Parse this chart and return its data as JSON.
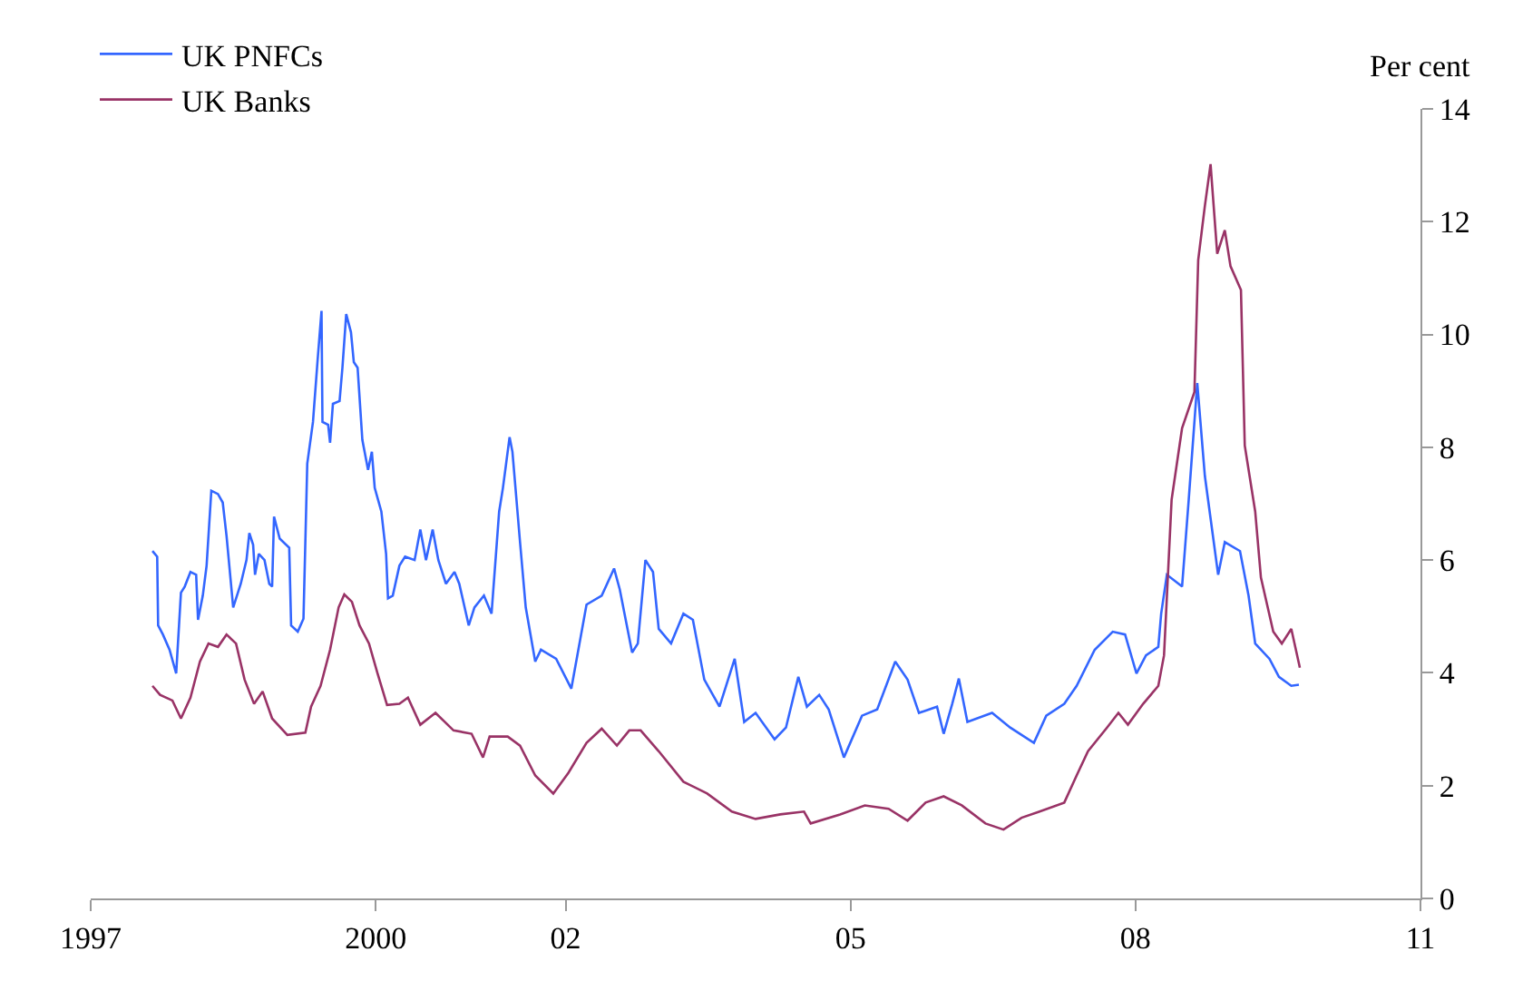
{
  "chart_data": {
    "type": "line",
    "ylabel": "Per cent",
    "xlim": [
      1997,
      2011
    ],
    "xticks": [
      {
        "value": 1997,
        "label": "1997"
      },
      {
        "value": 2000,
        "label": "2000"
      },
      {
        "value": 2002,
        "label": "02"
      },
      {
        "value": 2005,
        "label": "05"
      },
      {
        "value": 2008,
        "label": "08"
      },
      {
        "value": 2011,
        "label": "11"
      }
    ],
    "ylim": [
      0,
      14
    ],
    "yticks": [
      0,
      2,
      4,
      6,
      8,
      10,
      12,
      14
    ],
    "legend": "top left",
    "marker": "none",
    "line_style": "solid",
    "series": [
      {
        "name": "UK PNFCs",
        "color": "#3366ff",
        "x": [
          1997.65,
          1997.7,
          1997.71,
          1997.76,
          1997.83,
          1997.9,
          1997.95,
          1997.99,
          1998.05,
          1998.11,
          1998.13,
          1998.18,
          1998.22,
          1998.27,
          1998.34,
          1998.39,
          1998.43,
          1998.5,
          1998.58,
          1998.64,
          1998.67,
          1998.71,
          1998.73,
          1998.77,
          1998.83,
          1998.88,
          1998.91,
          1998.93,
          1998.99,
          1999.09,
          1999.11,
          1999.18,
          1999.24,
          1999.28,
          1999.34,
          1999.39,
          1999.43,
          1999.44,
          1999.5,
          1999.52,
          1999.55,
          1999.62,
          1999.65,
          1999.69,
          1999.74,
          1999.77,
          1999.81,
          1999.86,
          1999.92,
          1999.96,
          1999.99,
          2000.06,
          2000.11,
          2000.13,
          2000.18,
          2000.25,
          2000.31,
          2000.41,
          2000.47,
          2000.53,
          2000.6,
          2000.66,
          2000.74,
          2000.83,
          2000.88,
          2000.98,
          2001.04,
          2001.14,
          2001.22,
          2001.3,
          2001.34,
          2001.41,
          2001.44,
          2001.52,
          2001.58,
          2001.68,
          2001.74,
          2001.9,
          2002.06,
          2002.22,
          2002.38,
          2002.51,
          2002.57,
          2002.7,
          2002.76,
          2002.84,
          2002.92,
          2002.98,
          2003.11,
          2003.24,
          2003.34,
          2003.46,
          2003.62,
          2003.78,
          2003.88,
          2004.0,
          2004.2,
          2004.32,
          2004.45,
          2004.54,
          2004.67,
          2004.77,
          2004.93,
          2005.12,
          2005.28,
          2005.47,
          2005.6,
          2005.72,
          2005.91,
          2005.98,
          2006.07,
          2006.14,
          2006.23,
          2006.49,
          2006.68,
          2006.93,
          2007.06,
          2007.25,
          2007.38,
          2007.57,
          2007.76,
          2007.89,
          2008.01,
          2008.11,
          2008.24,
          2008.27,
          2008.33,
          2008.49,
          2008.56,
          2008.65,
          2008.73,
          2008.87,
          2008.94,
          2009.1,
          2009.19,
          2009.26,
          2009.41,
          2009.51,
          2009.64,
          2009.72
        ],
        "values": [
          6.16,
          6.06,
          4.84,
          4.68,
          4.41,
          3.99,
          5.42,
          5.53,
          5.79,
          5.74,
          4.94,
          5.37,
          5.9,
          7.23,
          7.17,
          7.02,
          6.43,
          5.16,
          5.58,
          6.0,
          6.48,
          6.27,
          5.74,
          6.11,
          6.0,
          5.58,
          5.53,
          6.77,
          6.38,
          6.22,
          4.84,
          4.73,
          4.96,
          7.71,
          8.45,
          9.57,
          10.42,
          8.45,
          8.4,
          8.08,
          8.77,
          8.82,
          9.41,
          10.36,
          10.04,
          9.51,
          9.41,
          8.13,
          7.6,
          7.92,
          7.28,
          6.86,
          6.11,
          5.32,
          5.37,
          5.9,
          6.06,
          6.0,
          6.54,
          6.0,
          6.54,
          6.0,
          5.58,
          5.79,
          5.58,
          4.84,
          5.16,
          5.37,
          5.05,
          6.86,
          7.28,
          8.18,
          7.92,
          6.32,
          5.16,
          4.2,
          4.41,
          4.25,
          3.72,
          5.21,
          5.37,
          5.85,
          5.48,
          4.36,
          4.52,
          6.0,
          5.79,
          4.78,
          4.52,
          5.05,
          4.94,
          3.88,
          3.4,
          4.25,
          3.13,
          3.29,
          2.82,
          3.03,
          3.93,
          3.4,
          3.61,
          3.35,
          2.5,
          3.24,
          3.35,
          4.2,
          3.88,
          3.29,
          3.4,
          2.92,
          3.45,
          3.9,
          3.13,
          3.29,
          3.03,
          2.76,
          3.24,
          3.45,
          3.77,
          4.41,
          4.73,
          4.68,
          3.99,
          4.31,
          4.46,
          5.05,
          5.74,
          5.53,
          7.07,
          9.14,
          7.49,
          5.74,
          6.32,
          6.16,
          5.37,
          4.52,
          4.25,
          3.93,
          3.77,
          3.79
        ]
      },
      {
        "name": "UK Banks",
        "color": "#993366",
        "x": [
          1997.65,
          1997.73,
          1997.86,
          1997.95,
          1998.05,
          1998.15,
          1998.24,
          1998.34,
          1998.43,
          1998.53,
          1998.62,
          1998.72,
          1998.81,
          1998.91,
          1999.07,
          1999.26,
          1999.32,
          1999.42,
          1999.52,
          1999.61,
          1999.67,
          1999.75,
          1999.83,
          1999.93,
          2000.02,
          2000.12,
          2000.25,
          2000.34,
          2000.47,
          2000.63,
          2000.82,
          2001.01,
          2001.13,
          2001.2,
          2001.39,
          2001.52,
          2001.68,
          2001.87,
          2002.03,
          2002.22,
          2002.38,
          2002.54,
          2002.67,
          2002.79,
          2002.98,
          2003.24,
          2003.49,
          2003.75,
          2004.0,
          2004.26,
          2004.51,
          2004.58,
          2004.89,
          2005.15,
          2005.4,
          2005.6,
          2005.79,
          2005.98,
          2006.17,
          2006.42,
          2006.61,
          2006.8,
          2006.99,
          2007.25,
          2007.38,
          2007.5,
          2007.7,
          2007.82,
          2007.92,
          2008.08,
          2008.24,
          2008.3,
          2008.38,
          2008.49,
          2008.62,
          2008.66,
          2008.73,
          2008.79,
          2008.86,
          2008.94,
          2009.0,
          2009.11,
          2009.15,
          2009.26,
          2009.32,
          2009.45,
          2009.54,
          2009.64,
          2009.73
        ],
        "values": [
          3.77,
          3.61,
          3.51,
          3.19,
          3.56,
          4.2,
          4.52,
          4.46,
          4.68,
          4.52,
          3.88,
          3.45,
          3.67,
          3.19,
          2.9,
          2.94,
          3.4,
          3.77,
          4.41,
          5.16,
          5.39,
          5.26,
          4.84,
          4.52,
          3.99,
          3.43,
          3.45,
          3.56,
          3.08,
          3.29,
          2.98,
          2.92,
          2.5,
          2.87,
          2.87,
          2.71,
          2.18,
          1.86,
          2.23,
          2.76,
          3.01,
          2.71,
          2.98,
          2.98,
          2.61,
          2.07,
          1.86,
          1.54,
          1.41,
          1.49,
          1.54,
          1.33,
          1.49,
          1.65,
          1.59,
          1.38,
          1.7,
          1.81,
          1.65,
          1.33,
          1.22,
          1.43,
          1.54,
          1.7,
          2.18,
          2.61,
          3.03,
          3.29,
          3.08,
          3.45,
          3.77,
          4.31,
          7.07,
          8.34,
          8.98,
          11.32,
          12.28,
          13.02,
          11.43,
          11.85,
          11.21,
          10.79,
          8.03,
          6.86,
          5.69,
          4.73,
          4.52,
          4.78,
          4.09
        ]
      }
    ]
  }
}
